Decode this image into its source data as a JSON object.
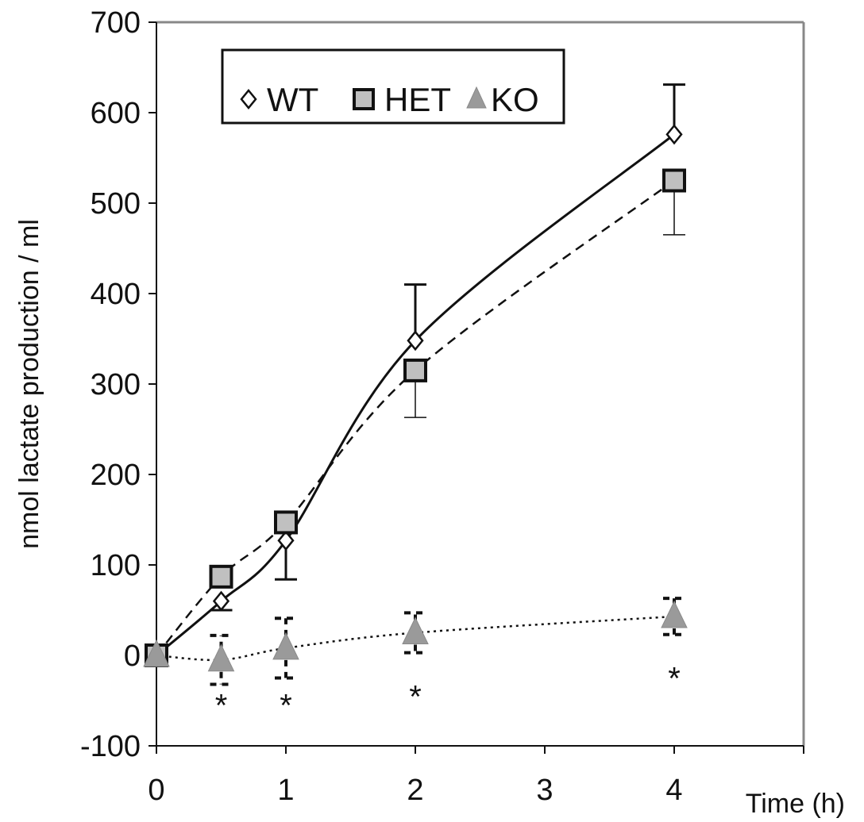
{
  "chart_data": {
    "type": "line",
    "xlabel": "Time (h)",
    "ylabel": "nmol lactate production / ml",
    "xlim": [
      0,
      5
    ],
    "ylim": [
      -100,
      700
    ],
    "x_ticks": [
      "0",
      "1",
      "2",
      "3",
      "4"
    ],
    "y_ticks": [
      "-100",
      "0",
      "100",
      "200",
      "300",
      "400",
      "500",
      "600",
      "700"
    ],
    "grid": false,
    "legend_position": "top-left",
    "series": [
      {
        "name": "WT",
        "marker": "diamond",
        "line_style": "solid",
        "x": [
          0,
          0.5,
          1,
          2,
          4
        ],
        "y": [
          0,
          60,
          127,
          348,
          576
        ],
        "error": [
          null,
          10,
          43,
          62,
          55
        ],
        "error_direction": [
          "none",
          "down",
          "down",
          "up",
          "up"
        ]
      },
      {
        "name": "HET",
        "marker": "square",
        "line_style": "dashed",
        "x": [
          0,
          0.5,
          1,
          2,
          4
        ],
        "y": [
          0,
          87,
          147,
          315,
          525
        ],
        "error": [
          null,
          0,
          0,
          52,
          60
        ],
        "error_direction": [
          "none",
          "none",
          "none",
          "down",
          "down"
        ]
      },
      {
        "name": "KO",
        "marker": "triangle",
        "line_style": "dotted",
        "x": [
          0,
          0.5,
          1,
          2,
          4
        ],
        "y": [
          0,
          -5,
          8,
          25,
          43
        ],
        "error": [
          null,
          27,
          33,
          22,
          20
        ],
        "error_direction": [
          "none",
          "both",
          "both",
          "both",
          "both"
        ]
      }
    ],
    "annotations": [
      {
        "x": 0.5,
        "y": -55,
        "text": "*"
      },
      {
        "x": 1,
        "y": -55,
        "text": "*"
      },
      {
        "x": 2,
        "y": -45,
        "text": "*"
      },
      {
        "x": 4,
        "y": -25,
        "text": "*"
      }
    ]
  },
  "colors": {
    "axis": "#111111",
    "frame": "#888888",
    "square_fill": "#c0c0c0",
    "triangle_fill": "#9a9a9a"
  }
}
